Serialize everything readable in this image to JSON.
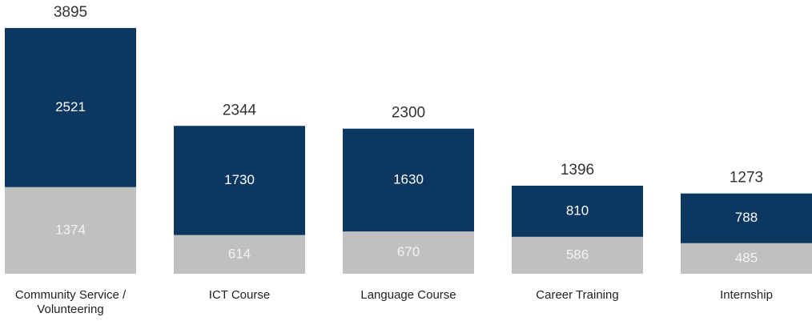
{
  "chart_data": {
    "type": "stacked-bar",
    "categories": [
      "Community Service / Volunteering",
      "ICT Course",
      "Language Course",
      "Career Training",
      "Internship"
    ],
    "series": [
      {
        "color": "#c0c0c0",
        "values": [
          1374,
          614,
          670,
          586,
          485
        ]
      },
      {
        "color": "#0b3761",
        "values": [
          2521,
          1730,
          1630,
          810,
          788
        ]
      }
    ],
    "totals": [
      3895,
      2344,
      2300,
      1396,
      1273
    ]
  }
}
